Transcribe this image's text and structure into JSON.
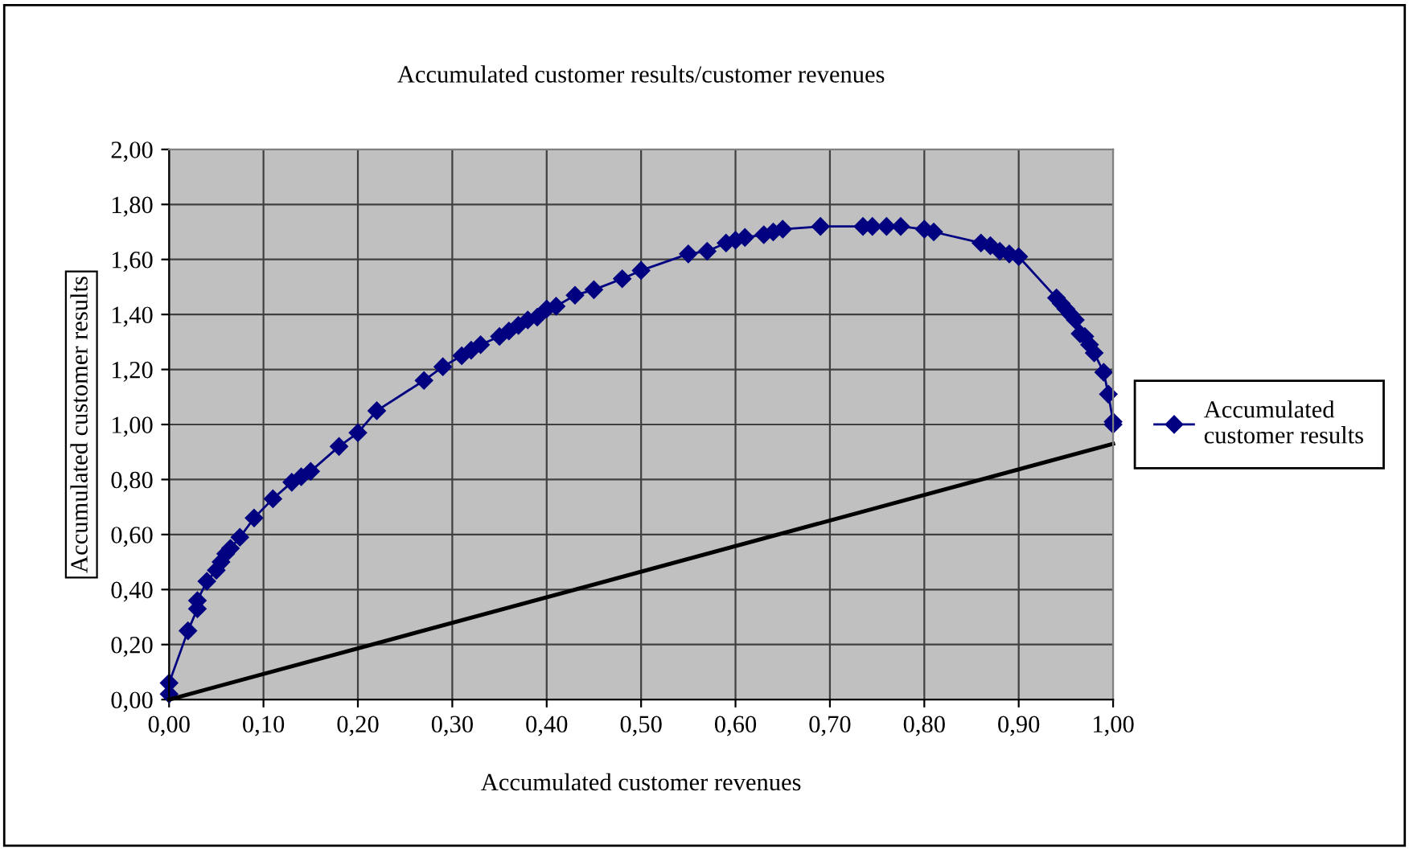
{
  "chart_data": {
    "type": "line",
    "title": "Accumulated customer results/customer revenues",
    "xlabel": "Accumulated customer revenues",
    "ylabel": "Accumulated customer results",
    "xlim": [
      0,
      1
    ],
    "ylim": [
      0,
      2
    ],
    "xticks": [
      {
        "value": 0,
        "label": "0,00"
      },
      {
        "value": 0.1,
        "label": "0,10"
      },
      {
        "value": 0.2,
        "label": "0,20"
      },
      {
        "value": 0.3,
        "label": "0,30"
      },
      {
        "value": 0.4,
        "label": "0,40"
      },
      {
        "value": 0.5,
        "label": "0,50"
      },
      {
        "value": 0.6,
        "label": "0,60"
      },
      {
        "value": 0.7,
        "label": "0,70"
      },
      {
        "value": 0.8,
        "label": "0,80"
      },
      {
        "value": 0.9,
        "label": "0,90"
      },
      {
        "value": 1,
        "label": "1,00"
      }
    ],
    "yticks": [
      {
        "value": 0,
        "label": "0,00"
      },
      {
        "value": 0.2,
        "label": "0,20"
      },
      {
        "value": 0.4,
        "label": "0,40"
      },
      {
        "value": 0.6,
        "label": "0,60"
      },
      {
        "value": 0.8,
        "label": "0,80"
      },
      {
        "value": 1,
        "label": "1,00"
      },
      {
        "value": 1.2,
        "label": "1,20"
      },
      {
        "value": 1.4,
        "label": "1,40"
      },
      {
        "value": 1.6,
        "label": "1,60"
      },
      {
        "value": 1.8,
        "label": "1,80"
      },
      {
        "value": 2,
        "label": "2,00"
      }
    ],
    "grid": true,
    "legend": "right",
    "series": [
      {
        "name": "Accumulated customer results",
        "color": "#000080",
        "marker": "diamond",
        "line_style": "solid",
        "x": [
          0.0,
          0.0,
          0.02,
          0.03,
          0.03,
          0.04,
          0.05,
          0.055,
          0.06,
          0.065,
          0.075,
          0.09,
          0.11,
          0.13,
          0.14,
          0.15,
          0.18,
          0.2,
          0.22,
          0.27,
          0.29,
          0.31,
          0.32,
          0.33,
          0.35,
          0.36,
          0.37,
          0.38,
          0.39,
          0.4,
          0.41,
          0.43,
          0.45,
          0.48,
          0.5,
          0.55,
          0.57,
          0.59,
          0.6,
          0.61,
          0.63,
          0.64,
          0.65,
          0.69,
          0.735,
          0.745,
          0.76,
          0.775,
          0.8,
          0.81,
          0.86,
          0.87,
          0.88,
          0.89,
          0.9,
          0.94,
          0.945,
          0.95,
          0.955,
          0.96,
          0.965,
          0.97,
          0.975,
          0.98,
          0.99,
          0.995,
          1.0,
          1.0
        ],
        "values": [
          0.02,
          0.06,
          0.25,
          0.33,
          0.36,
          0.43,
          0.47,
          0.5,
          0.53,
          0.55,
          0.59,
          0.66,
          0.73,
          0.79,
          0.81,
          0.83,
          0.92,
          0.97,
          1.05,
          1.16,
          1.21,
          1.25,
          1.27,
          1.29,
          1.32,
          1.34,
          1.36,
          1.38,
          1.39,
          1.42,
          1.43,
          1.47,
          1.49,
          1.53,
          1.56,
          1.62,
          1.63,
          1.66,
          1.67,
          1.68,
          1.69,
          1.7,
          1.71,
          1.72,
          1.72,
          1.72,
          1.72,
          1.72,
          1.71,
          1.7,
          1.66,
          1.65,
          1.63,
          1.62,
          1.61,
          1.46,
          1.44,
          1.42,
          1.4,
          1.38,
          1.33,
          1.32,
          1.29,
          1.26,
          1.19,
          1.11,
          1.01,
          1.0
        ]
      },
      {
        "color": "#000000",
        "marker": "none",
        "line_style": "solid",
        "x": [
          0,
          1
        ],
        "values": [
          0,
          0.93
        ]
      }
    ]
  }
}
